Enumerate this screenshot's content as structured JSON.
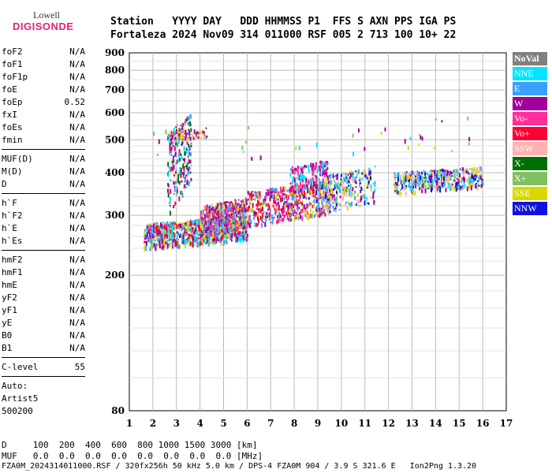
{
  "logo": {
    "top": "Lowell",
    "bottom": "DIGISONDE"
  },
  "header": {
    "row1": "Station   YYYY DAY   DDD HHMMSS P1  FFS S AXN PPS IGA PS",
    "row2": "Fortaleza 2024 Nov09 314 011000 RSF 005 2 713 100 10+ 22"
  },
  "params": {
    "group1": [
      [
        "foF2",
        "N/A"
      ],
      [
        "foF1",
        "N/A"
      ],
      [
        "foF1p",
        "N/A"
      ],
      [
        "foE",
        "N/A"
      ],
      [
        "foEp",
        "0.52"
      ],
      [
        "fxI",
        "N/A"
      ],
      [
        "foEs",
        "N/A"
      ],
      [
        "fmin",
        "N/A"
      ]
    ],
    "group2": [
      [
        "MUF(D)",
        "N/A"
      ],
      [
        "M(D)",
        "N/A"
      ],
      [
        "D",
        "N/A"
      ]
    ],
    "group3": [
      [
        "h`F",
        "N/A"
      ],
      [
        "h`F2",
        "N/A"
      ],
      [
        "h`E",
        "N/A"
      ],
      [
        "h`Es",
        "N/A"
      ]
    ],
    "group4": [
      [
        "hmF2",
        "N/A"
      ],
      [
        "hmF1",
        "N/A"
      ],
      [
        "hmE",
        "N/A"
      ],
      [
        "yF2",
        "N/A"
      ],
      [
        "yF1",
        "N/A"
      ],
      [
        "yE",
        "N/A"
      ],
      [
        "B0",
        "N/A"
      ],
      [
        "B1",
        "N/A"
      ]
    ],
    "group5": [
      [
        "C-level",
        "55"
      ]
    ],
    "auto": [
      "Auto:",
      "Artist5",
      "500200"
    ]
  },
  "legend": [
    {
      "label": "NoVal",
      "color": "#808080",
      "bold": true
    },
    {
      "label": "NNE",
      "color": "#00e5ff"
    },
    {
      "label": "E",
      "color": "#3aa0ff"
    },
    {
      "label": "W",
      "color": "#a0009a"
    },
    {
      "label": "Vo-",
      "color": "#ff2e9a"
    },
    {
      "label": "Vo+",
      "color": "#ff0033"
    },
    {
      "label": "SSW",
      "color": "#ffb0b0"
    },
    {
      "label": "X-",
      "color": "#007000"
    },
    {
      "label": "X+",
      "color": "#80c060"
    },
    {
      "label": "SSE",
      "color": "#d8d800"
    },
    {
      "label": "NNW",
      "color": "#1010e0"
    }
  ],
  "footer": {
    "line1": "D     100  200  400  600  800 1000 1500 3000 [km]",
    "line2": "MUF   0.0  0.0  0.0  0.0  0.0  0.0  0.0  0.0 [MHz]",
    "line3": "FZA0M_2024314011000.RSF / 320fx256h 50 kHz 5.0 km / DPS-4 FZA0M 904 / 3.9 S 321.6 E   Ion2Png 1.3.20"
  },
  "chart_data": {
    "type": "scatter",
    "title": "",
    "xlabel": "",
    "ylabel": "",
    "xlim": [
      1,
      17
    ],
    "ylim": [
      80,
      900
    ],
    "y_scale": "log",
    "x_ticks": [
      1,
      2,
      3,
      4,
      5,
      6,
      7,
      8,
      9,
      10,
      11,
      12,
      13,
      14,
      15,
      16,
      17
    ],
    "y_ticks": [
      80,
      200,
      300,
      400,
      500,
      600,
      700,
      800,
      900
    ],
    "grid": true,
    "clusters": [
      {
        "name": "F-trace low band",
        "x_range": [
          1.6,
          6.0
        ],
        "h_range": [
          240,
          300
        ],
        "colors": [
          "#ff0033",
          "#a0009a",
          "#00e5ff",
          "#d8d800",
          "#3aa0ff"
        ],
        "count": 900
      },
      {
        "name": "F-trace rise",
        "x_range": [
          4.0,
          6.0
        ],
        "h_range": [
          260,
          340
        ],
        "colors": [
          "#a0009a",
          "#ff2e9a",
          "#3aa0ff",
          "#d8d800"
        ],
        "count": 500
      },
      {
        "name": "spread 3MHz",
        "x_range": [
          2.6,
          3.6
        ],
        "h_range": [
          300,
          600
        ],
        "colors": [
          "#a0009a",
          "#007000",
          "#00e5ff",
          "#ff0033",
          "#3aa0ff"
        ],
        "count": 220
      },
      {
        "name": "SSE echo 3MHz",
        "x_range": [
          2.7,
          4.3
        ],
        "h_range": [
          500,
          545
        ],
        "colors": [
          "#d8d800",
          "#ffb0b0",
          "#a0009a"
        ],
        "count": 80
      },
      {
        "name": "mid band",
        "x_range": [
          6.0,
          9.5
        ],
        "h_range": [
          280,
          380
        ],
        "colors": [
          "#ff0033",
          "#d8d800",
          "#a0009a",
          "#ff2e9a",
          "#3aa0ff"
        ],
        "count": 500
      },
      {
        "name": "high band 8-9",
        "x_range": [
          7.8,
          9.4
        ],
        "h_range": [
          350,
          440
        ],
        "colors": [
          "#a0009a",
          "#ff2e9a",
          "#00e5ff"
        ],
        "count": 200
      },
      {
        "name": "upper 9-11",
        "x_range": [
          8.9,
          11.4
        ],
        "h_range": [
          300,
          420
        ],
        "colors": [
          "#d8d800",
          "#ffb0b0",
          "#1010e0",
          "#a0009a",
          "#00e5ff",
          "#3aa0ff"
        ],
        "count": 300
      },
      {
        "name": "upper 12-16",
        "x_range": [
          12.2,
          16.0
        ],
        "h_range": [
          350,
          420
        ],
        "colors": [
          "#a0009a",
          "#3aa0ff",
          "#00e5ff",
          "#ffb0b0",
          "#d8d800",
          "#1010e0"
        ],
        "count": 500
      },
      {
        "name": "scattered upper",
        "x_range": [
          2.0,
          15.5
        ],
        "h_range": [
          420,
          600
        ],
        "colors": [
          "#00e5ff",
          "#a0009a",
          "#80c060",
          "#d8d800"
        ],
        "count": 40
      }
    ]
  }
}
